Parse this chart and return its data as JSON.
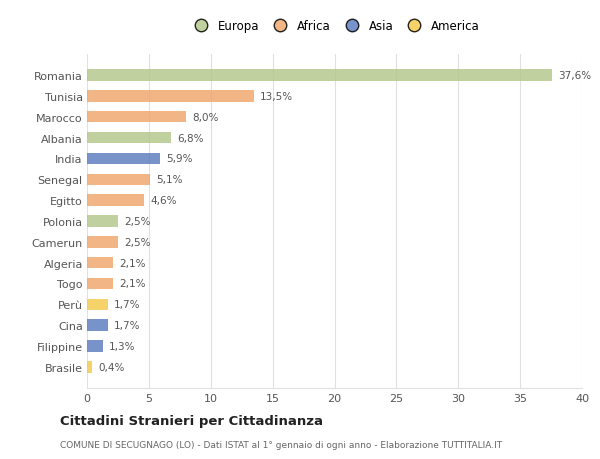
{
  "countries": [
    "Romania",
    "Tunisia",
    "Marocco",
    "Albania",
    "India",
    "Senegal",
    "Egitto",
    "Polonia",
    "Camerun",
    "Algeria",
    "Togo",
    "Perù",
    "Cina",
    "Filippine",
    "Brasile"
  ],
  "values": [
    37.6,
    13.5,
    8.0,
    6.8,
    5.9,
    5.1,
    4.6,
    2.5,
    2.5,
    2.1,
    2.1,
    1.7,
    1.7,
    1.3,
    0.4
  ],
  "labels": [
    "37,6%",
    "13,5%",
    "8,0%",
    "6,8%",
    "5,9%",
    "5,1%",
    "4,6%",
    "2,5%",
    "2,5%",
    "2,1%",
    "2,1%",
    "1,7%",
    "1,7%",
    "1,3%",
    "0,4%"
  ],
  "continents": [
    "Europa",
    "Africa",
    "Africa",
    "Europa",
    "Asia",
    "Africa",
    "Africa",
    "Europa",
    "Africa",
    "Africa",
    "Africa",
    "America",
    "Asia",
    "Asia",
    "America"
  ],
  "colors": {
    "Europa": "#b5c98e",
    "Africa": "#f0a870",
    "Asia": "#6080c0",
    "America": "#f5cc50"
  },
  "legend_order": [
    "Europa",
    "Africa",
    "Asia",
    "America"
  ],
  "legend_colors": [
    "#b5c98e",
    "#f0a870",
    "#6080c0",
    "#f5cc50"
  ],
  "xlim": [
    0,
    40
  ],
  "xticks": [
    0,
    5,
    10,
    15,
    20,
    25,
    30,
    35,
    40
  ],
  "title": "Cittadini Stranieri per Cittadinanza",
  "subtitle": "COMUNE DI SECUGNAGO (LO) - Dati ISTAT al 1° gennaio di ogni anno - Elaborazione TUTTITALIA.IT",
  "background_color": "#ffffff",
  "grid_color": "#e0e0e0",
  "text_color": "#555555",
  "bar_alpha": 0.85
}
